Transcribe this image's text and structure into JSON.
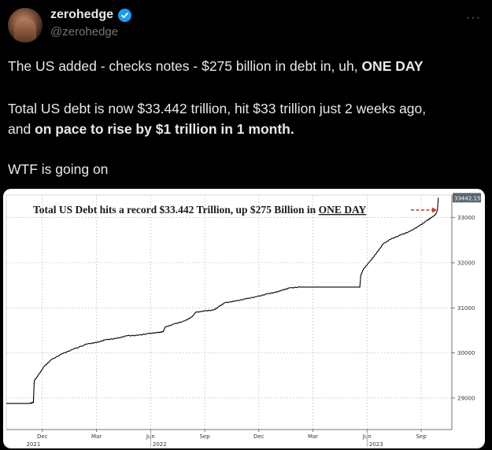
{
  "author": {
    "name": "zerohedge",
    "handle": "@zerohedge",
    "more_label": "···"
  },
  "post": {
    "line1_pre": "The US added - checks notes - $275 billion in debt in, uh, ",
    "line1_bold": "ONE DAY",
    "line2": "Total US debt is now $33.442 trillion, hit $33 trillion just 2 weeks ago,",
    "line3_pre": "and ",
    "line3_bold": "on pace to rise by $1 trillion in 1 month.",
    "line4": "WTF is going on"
  },
  "chart_data": {
    "type": "line",
    "title_pre": "Total US Debt hits a record $33.442 Trillion, up $275 Billion in ",
    "title_underlined": "ONE DAY",
    "last_value_label": "33442.15",
    "y_ticks": [
      "33000",
      "32000",
      "31000",
      "30000",
      "29000"
    ],
    "y_tick_values": [
      33000,
      32000,
      31000,
      30000,
      29000
    ],
    "ylim": [
      28300,
      33500
    ],
    "x_month_labels": [
      "Dec",
      "Mar",
      "Jun",
      "Sep",
      "Dec",
      "Mar",
      "Jun",
      "Sep"
    ],
    "x_month_positions": [
      0.5,
      3.5,
      6.5,
      9.5,
      12.5,
      15.5,
      18.5,
      21.5
    ],
    "x_year_labels": [
      "2021",
      "2022",
      "2023"
    ],
    "x_year_positions": [
      0,
      7,
      19
    ],
    "xlim": [
      -1.5,
      23.2
    ],
    "series": [
      {
        "points": [
          [
            -1.5,
            28880
          ],
          [
            -0.2,
            28880
          ],
          [
            0.0,
            28900
          ],
          [
            0.05,
            29380
          ],
          [
            0.3,
            29520
          ],
          [
            0.6,
            29700
          ],
          [
            1.0,
            29850
          ],
          [
            1.6,
            29980
          ],
          [
            2.2,
            30080
          ],
          [
            3.0,
            30200
          ],
          [
            3.5,
            30230
          ],
          [
            4.0,
            30290
          ],
          [
            4.6,
            30320
          ],
          [
            5.2,
            30380
          ],
          [
            5.8,
            30390
          ],
          [
            6.4,
            30430
          ],
          [
            6.9,
            30450
          ],
          [
            7.2,
            30470
          ],
          [
            7.3,
            30570
          ],
          [
            7.8,
            30640
          ],
          [
            8.4,
            30710
          ],
          [
            8.8,
            30800
          ],
          [
            9.0,
            30900
          ],
          [
            9.5,
            30930
          ],
          [
            10.0,
            30950
          ],
          [
            10.3,
            31030
          ],
          [
            10.6,
            31110
          ],
          [
            11.2,
            31150
          ],
          [
            11.8,
            31200
          ],
          [
            12.4,
            31250
          ],
          [
            13.0,
            31310
          ],
          [
            13.4,
            31340
          ],
          [
            13.8,
            31390
          ],
          [
            14.2,
            31440
          ],
          [
            14.8,
            31460
          ],
          [
            15.5,
            31460
          ],
          [
            16.5,
            31460
          ],
          [
            17.5,
            31460
          ],
          [
            18.1,
            31460
          ],
          [
            18.15,
            31720
          ],
          [
            18.3,
            31860
          ],
          [
            18.6,
            32000
          ],
          [
            19.0,
            32200
          ],
          [
            19.4,
            32420
          ],
          [
            19.8,
            32520
          ],
          [
            20.4,
            32620
          ],
          [
            20.9,
            32700
          ],
          [
            21.4,
            32820
          ],
          [
            21.8,
            32930
          ],
          [
            22.1,
            33010
          ],
          [
            22.3,
            33070
          ],
          [
            22.4,
            33170
          ],
          [
            22.45,
            33442
          ]
        ]
      }
    ],
    "colors": {
      "line": "#000000",
      "grid": "#b0b0b0",
      "arrow": "#c0392b",
      "label_bg": "#5a6670"
    }
  }
}
